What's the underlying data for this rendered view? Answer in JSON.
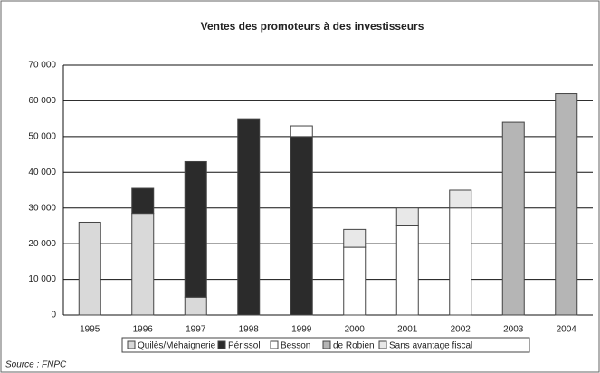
{
  "chart_data": {
    "type": "stacked_bar",
    "title": "Ventes des promoteurs à des investisseurs",
    "source": "Source : FNPC",
    "categories": [
      "1995",
      "1996",
      "1997",
      "1998",
      "1999",
      "2000",
      "2001",
      "2002",
      "2003",
      "2004"
    ],
    "series": [
      {
        "name": "Quilès/Méhaignerie",
        "color": "#d9d9d9",
        "values": [
          26000,
          28500,
          5000,
          null,
          null,
          null,
          null,
          null,
          null,
          null
        ]
      },
      {
        "name": "Périssol",
        "color": "#2b2b2b",
        "values": [
          null,
          7000,
          38000,
          55000,
          50000,
          null,
          null,
          null,
          null,
          null
        ]
      },
      {
        "name": "Besson",
        "color": "#ffffff",
        "values": [
          null,
          null,
          null,
          null,
          3000,
          19000,
          25000,
          30000,
          null,
          null
        ]
      },
      {
        "name": "de Robien",
        "color": "#b5b5b5",
        "values": [
          null,
          null,
          null,
          null,
          null,
          null,
          null,
          null,
          54000,
          62000
        ]
      },
      {
        "name": "Sans avantage fiscal",
        "color": "#e8e8e8",
        "values": [
          null,
          null,
          null,
          null,
          null,
          5000,
          5000,
          5000,
          null,
          null
        ]
      }
    ],
    "ylim": [
      0,
      70000
    ],
    "yticks": [
      {
        "value": 0,
        "label": "0"
      },
      {
        "value": 10000,
        "label": "10 000"
      },
      {
        "value": 20000,
        "label": "20 000"
      },
      {
        "value": 30000,
        "label": "30 000"
      },
      {
        "value": 40000,
        "label": "40 000"
      },
      {
        "value": 50000,
        "label": "50 000"
      },
      {
        "value": 60000,
        "label": "60 000"
      },
      {
        "value": 70000,
        "label": "70 000"
      }
    ],
    "grid": true
  }
}
